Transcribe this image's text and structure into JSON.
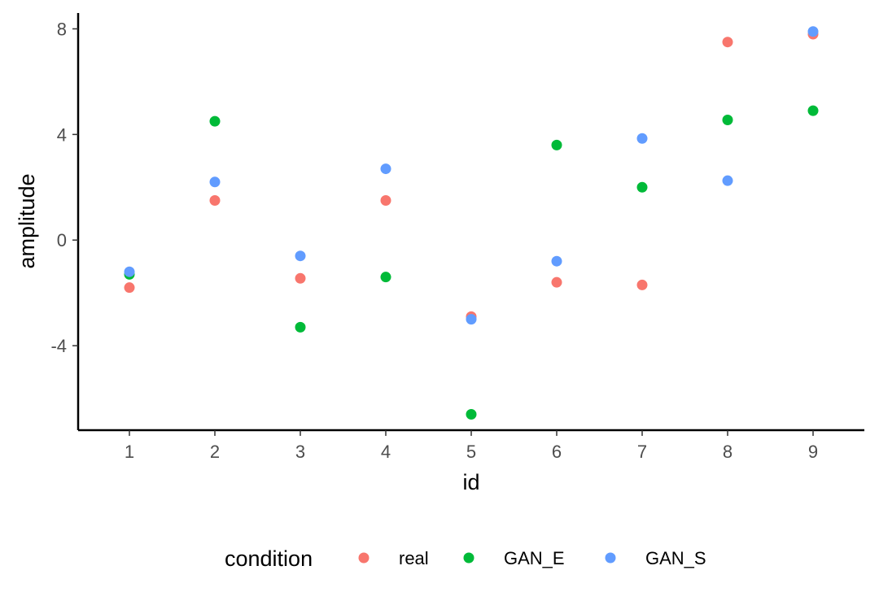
{
  "chart_data": {
    "type": "scatter",
    "title": "",
    "xlabel": "id",
    "ylabel": "amplitude",
    "x": [
      1,
      2,
      3,
      4,
      5,
      6,
      7,
      8,
      9
    ],
    "x_ticks": [
      "1",
      "2",
      "3",
      "4",
      "5",
      "6",
      "7",
      "8",
      "9"
    ],
    "y_ticks": [
      "-4",
      "0",
      "4",
      "8"
    ],
    "y_tick_values": [
      -4,
      0,
      4,
      8
    ],
    "xlim": [
      0.4,
      9.6
    ],
    "ylim": [
      -7.2,
      8.6
    ],
    "grid": false,
    "legend_title": "condition",
    "legend_position": "bottom",
    "series": [
      {
        "name": "real",
        "color": "#F8766D",
        "values": [
          -1.8,
          1.5,
          -1.45,
          1.5,
          -2.9,
          -1.6,
          -1.7,
          7.5,
          7.8
        ]
      },
      {
        "name": "GAN_E",
        "color": "#00BA38",
        "values": [
          -1.3,
          4.5,
          -3.3,
          -1.4,
          -6.6,
          3.6,
          2.0,
          4.55,
          4.9
        ]
      },
      {
        "name": "GAN_S",
        "color": "#619CFF",
        "values": [
          -1.2,
          2.2,
          -0.6,
          2.7,
          -3.0,
          -0.8,
          3.85,
          2.25,
          7.9
        ]
      }
    ]
  }
}
